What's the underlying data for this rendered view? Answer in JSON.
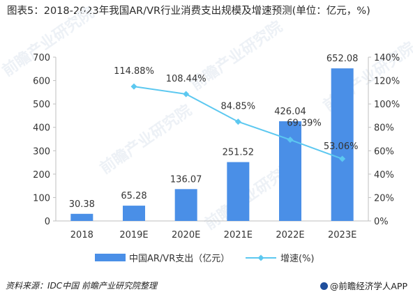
{
  "title": "图表5：2018-2023年我国AR/VR行业消费支出规模及增速预测(单位：亿元，%)",
  "source": "资料来源：IDC中国 前瞻产业研究院整理",
  "brand": "@前瞻经济学人APP",
  "watermark": "前瞻产业研究院",
  "colors": {
    "bar": "#4a8fe7",
    "line": "#5cc8f0",
    "axis": "#bfbfbf",
    "text": "#333333"
  },
  "chart_data": {
    "type": "bar",
    "categories": [
      "2018",
      "2019E",
      "2020E",
      "2021E",
      "2022E",
      "2023E"
    ],
    "series": [
      {
        "name": "中国AR/VR支出（亿元）",
        "type": "bar",
        "axis": "left",
        "values": [
          30.38,
          65.28,
          136.07,
          251.52,
          426.04,
          652.08
        ],
        "labels": [
          "30.38",
          "65.28",
          "136.07",
          "251.52",
          "426.04",
          "652.08"
        ]
      },
      {
        "name": "增速(%)",
        "type": "line",
        "axis": "right",
        "values": [
          null,
          114.88,
          108.44,
          84.85,
          69.39,
          53.06
        ],
        "labels": [
          "",
          "114.88%",
          "108.44%",
          "84.85%",
          "69.39%",
          "53.06%"
        ]
      }
    ],
    "ylim_left": [
      0,
      700
    ],
    "yticks_left": [
      "0",
      "100",
      "200",
      "300",
      "400",
      "500",
      "600",
      "700"
    ],
    "ylim_right": [
      0,
      140
    ],
    "yticks_right": [
      "0%",
      "20%",
      "40%",
      "60%",
      "80%",
      "100%",
      "120%",
      "140%"
    ],
    "grid": false,
    "legend": "bottom"
  }
}
